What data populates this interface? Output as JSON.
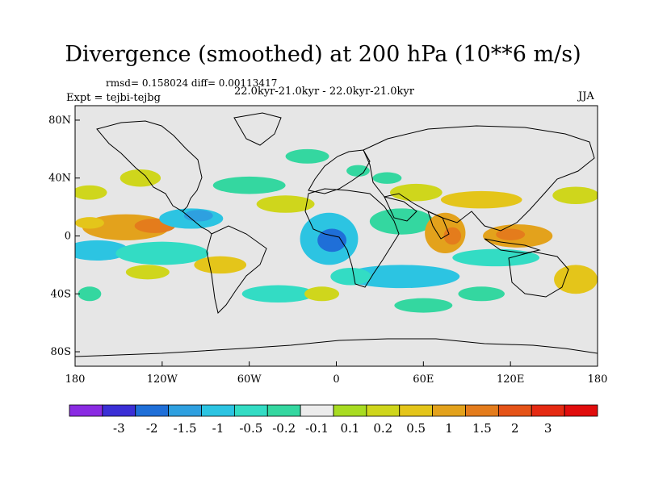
{
  "title": "Divergence (smoothed) at 200 hPa (10**6 m/s)",
  "stats": "rmsd= 0.158024 diff= 0.00113417",
  "period": "22.0kyr-21.0kyr - 22.0kyr-21.0kyr",
  "experiment": "Expt = tejbi-tejbg",
  "season": "JJA",
  "map": {
    "projection": "cylindrical-equidistant",
    "lon_range": [
      -180,
      180
    ],
    "lat_range": [
      -90,
      90
    ],
    "background_color": "#e6e6e6",
    "x_ticks": [
      {
        "lon": -180,
        "label": "180"
      },
      {
        "lon": -120,
        "label": "120W"
      },
      {
        "lon": -60,
        "label": "60W"
      },
      {
        "lon": 0,
        "label": "0"
      },
      {
        "lon": 60,
        "label": "60E"
      },
      {
        "lon": 120,
        "label": "120E"
      },
      {
        "lon": 180,
        "label": "180"
      }
    ],
    "y_ticks": [
      {
        "lat": 80,
        "label": "80N"
      },
      {
        "lat": 40,
        "label": "40N"
      },
      {
        "lat": 0,
        "label": "0"
      },
      {
        "lat": -40,
        "label": "40S"
      },
      {
        "lat": -80,
        "label": "80S"
      }
    ]
  },
  "colorbar": {
    "colors": [
      "#8a2be2",
      "#3b2fd6",
      "#1f6fd8",
      "#2ea0e0",
      "#2cc4e2",
      "#33dcc4",
      "#34d7a0",
      "#ececec",
      "#a8dc22",
      "#cfd61c",
      "#e4c51a",
      "#e3a21c",
      "#e47c1c",
      "#e55318",
      "#e52a12",
      "#e10d0d"
    ],
    "labels": [
      "-3",
      "-2",
      "-1.5",
      "-1",
      "-0.5",
      "-0.2",
      "-0.1",
      "0.1",
      "0.2",
      "0.5",
      "1",
      "1.5",
      "2",
      "3"
    ]
  },
  "anomaly_regions": [
    {
      "lon": -145,
      "lat": 6,
      "rx": 30,
      "ry": 9,
      "level": 11
    },
    {
      "lon": -125,
      "lat": 7,
      "rx": 14,
      "ry": 5,
      "level": 12
    },
    {
      "lon": -170,
      "lat": 9,
      "rx": 10,
      "ry": 4,
      "level": 10
    },
    {
      "lon": -100,
      "lat": 12,
      "rx": 22,
      "ry": 7,
      "level": 4
    },
    {
      "lon": -95,
      "lat": 14,
      "rx": 10,
      "ry": 4,
      "level": 3
    },
    {
      "lon": -165,
      "lat": -10,
      "rx": 22,
      "ry": 7,
      "level": 4
    },
    {
      "lon": -120,
      "lat": -12,
      "rx": 32,
      "ry": 8,
      "level": 5
    },
    {
      "lon": -80,
      "lat": -20,
      "rx": 18,
      "ry": 6,
      "level": 10
    },
    {
      "lon": -5,
      "lat": -2,
      "rx": 20,
      "ry": 18,
      "level": 4
    },
    {
      "lon": -3,
      "lat": -3,
      "rx": 10,
      "ry": 8,
      "level": 2
    },
    {
      "lon": 45,
      "lat": 10,
      "rx": 22,
      "ry": 9,
      "level": 6
    },
    {
      "lon": 75,
      "lat": 2,
      "rx": 14,
      "ry": 14,
      "level": 11
    },
    {
      "lon": 80,
      "lat": 0,
      "rx": 6,
      "ry": 6,
      "level": 12
    },
    {
      "lon": 125,
      "lat": 0,
      "rx": 24,
      "ry": 8,
      "level": 11
    },
    {
      "lon": 120,
      "lat": 1,
      "rx": 10,
      "ry": 4,
      "level": 12
    },
    {
      "lon": 100,
      "lat": 25,
      "rx": 28,
      "ry": 6,
      "level": 10
    },
    {
      "lon": 55,
      "lat": 30,
      "rx": 18,
      "ry": 6,
      "level": 9
    },
    {
      "lon": 165,
      "lat": 28,
      "rx": 16,
      "ry": 6,
      "level": 9
    },
    {
      "lon": 45,
      "lat": -28,
      "rx": 40,
      "ry": 8,
      "level": 4
    },
    {
      "lon": 10,
      "lat": -28,
      "rx": 14,
      "ry": 6,
      "level": 5
    },
    {
      "lon": 110,
      "lat": -15,
      "rx": 30,
      "ry": 6,
      "level": 5
    },
    {
      "lon": 165,
      "lat": -30,
      "rx": 15,
      "ry": 10,
      "level": 10
    },
    {
      "lon": -60,
      "lat": 35,
      "rx": 25,
      "ry": 6,
      "level": 6
    },
    {
      "lon": -35,
      "lat": 22,
      "rx": 20,
      "ry": 6,
      "level": 9
    },
    {
      "lon": -135,
      "lat": 40,
      "rx": 14,
      "ry": 6,
      "level": 9
    },
    {
      "lon": -170,
      "lat": 30,
      "rx": 12,
      "ry": 5,
      "level": 9
    },
    {
      "lon": -20,
      "lat": 55,
      "rx": 15,
      "ry": 5,
      "level": 6
    },
    {
      "lon": 15,
      "lat": 45,
      "rx": 8,
      "ry": 4,
      "level": 6
    },
    {
      "lon": 35,
      "lat": 40,
      "rx": 10,
      "ry": 4,
      "level": 6
    },
    {
      "lon": -40,
      "lat": -40,
      "rx": 25,
      "ry": 6,
      "level": 5
    },
    {
      "lon": -130,
      "lat": -25,
      "rx": 15,
      "ry": 5,
      "level": 9
    },
    {
      "lon": -170,
      "lat": -40,
      "rx": 8,
      "ry": 5,
      "level": 6
    },
    {
      "lon": 60,
      "lat": -48,
      "rx": 20,
      "ry": 5,
      "level": 6
    },
    {
      "lon": 100,
      "lat": -40,
      "rx": 16,
      "ry": 5,
      "level": 6
    },
    {
      "lon": -10,
      "lat": -40,
      "rx": 12,
      "ry": 5,
      "level": 9
    }
  ]
}
